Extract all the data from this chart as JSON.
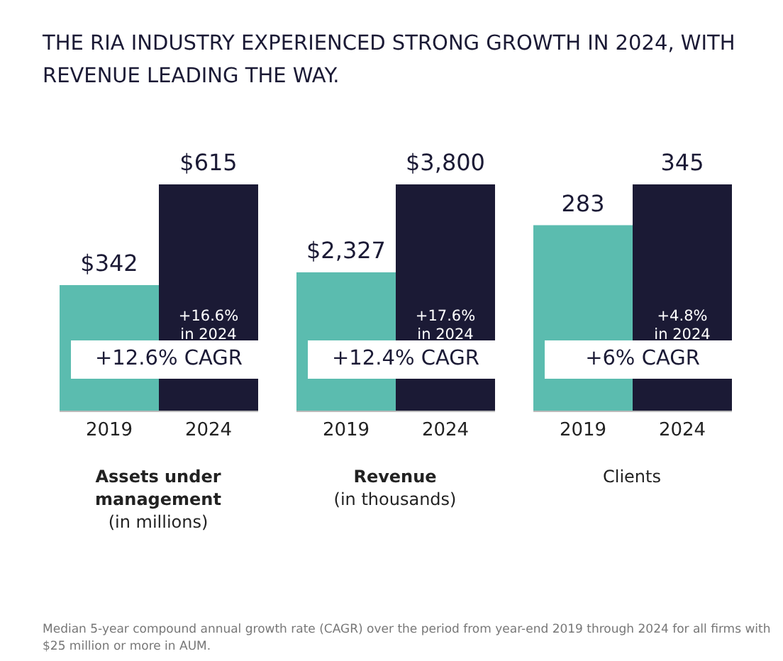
{
  "chart_data": [
    {
      "type": "bar",
      "title": "THE RIA INDUSTRY EXPERIENCED STRONG GROWTH IN 2024, WITH REVENUE LEADING THE WAY.",
      "categories": [
        "2019",
        "2024"
      ],
      "values": [
        342,
        615
      ],
      "value_labels": [
        "$342",
        "$615"
      ],
      "colors": [
        "#5bbcaf",
        "#1b1a35"
      ],
      "xlabel": "Assets under management (in millions)",
      "annotations": [
        "+16.6% in 2024",
        "+12.6% CAGR"
      ]
    },
    {
      "type": "bar",
      "categories": [
        "2019",
        "2024"
      ],
      "values": [
        2327,
        3800
      ],
      "value_labels": [
        "$2,327",
        "$3,800"
      ],
      "colors": [
        "#5bbcaf",
        "#1b1a35"
      ],
      "xlabel": "Revenue (in thousands)",
      "annotations": [
        "+17.6% in 2024",
        "+12.4% CAGR"
      ]
    },
    {
      "type": "bar",
      "categories": [
        "2019",
        "2024"
      ],
      "values": [
        283,
        345
      ],
      "value_labels": [
        "283",
        "345"
      ],
      "colors": [
        "#5bbcaf",
        "#1b1a35"
      ],
      "xlabel": "Clients",
      "annotations": [
        "+4.8% in 2024",
        "+6% CAGR",
        "Median 5-year compound annual growth rate (CAGR) over the period from year-end 2019 through 2024 for all firms with $25 million or more in AUM."
      ]
    }
  ]
}
